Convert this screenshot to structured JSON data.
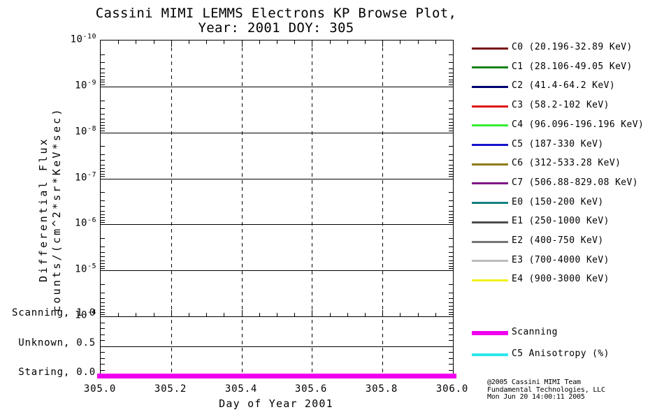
{
  "title": {
    "line1": "Cassini MIMI LEMMS Electrons KP Browse Plot,",
    "line2": "Year: 2001 DOY: 305"
  },
  "axes": {
    "x": {
      "label": "Day of Year 2001",
      "min": 305.0,
      "max": 306.0,
      "major_ticks": [
        305.0,
        305.2,
        305.4,
        305.6,
        305.8,
        306.0
      ],
      "tick_labels": [
        "305.0",
        "305.2",
        "305.4",
        "305.6",
        "305.8",
        "306.0"
      ],
      "minor_step": 0.05
    },
    "y_flux": {
      "label_line1": "Differential Flux",
      "label_line2": "counts/(cm^2*sr*KeV*sec)",
      "scale": "log",
      "top_exponent": -10,
      "bottom_exponent": -4,
      "tick_base": "10",
      "tick_exponents": [
        -10,
        -9,
        -8,
        -7,
        -6,
        -5,
        -4
      ]
    },
    "y_mode": {
      "tick_labels": [
        {
          "label": "Scanning, 1.0",
          "value": 1.0
        },
        {
          "label": "Unknown, 0.5",
          "value": 0.5
        },
        {
          "label": "Staring, 0.0",
          "value": 0.0
        }
      ],
      "minor_step": 0.1
    }
  },
  "legend": {
    "channels": [
      {
        "label": "C0 (20.196-32.89 KeV)",
        "color": "#7A1010"
      },
      {
        "label": "C1 (28.106-49.05 KeV)",
        "color": "#168016"
      },
      {
        "label": "C2 (41.4-64.2 KeV)",
        "color": "#000070"
      },
      {
        "label": "C3 (58.2-102 KeV)",
        "color": "#DD1414"
      },
      {
        "label": "C4 (96.096-196.196 KeV)",
        "color": "#33EE33"
      },
      {
        "label": "C5 (187-330 KeV)",
        "color": "#1414CC"
      },
      {
        "label": "C6 (312-533.28 KeV)",
        "color": "#8D7B12"
      },
      {
        "label": "C7 (506.88-829.08 KeV)",
        "color": "#7D1585"
      },
      {
        "label": "E0 (150-200 KeV)",
        "color": "#157F7F"
      },
      {
        "label": "E1 (250-1000 KeV)",
        "color": "#4D4D4D"
      },
      {
        "label": "E2 (400-750 KeV)",
        "color": "#757575"
      },
      {
        "label": "E3 (700-4000 KeV)",
        "color": "#BBBBBB"
      },
      {
        "label": "E4 (900-3000 KeV)",
        "color": "#F2F21A"
      }
    ],
    "modes": [
      {
        "label": "Scanning",
        "color": "#F000F0",
        "thickness": 6
      },
      {
        "label": "C5 Anisotropy (%)",
        "color": "#2EE8EE",
        "thickness": 4
      }
    ]
  },
  "footer": {
    "line1": "@2005 Cassini MIMI Team",
    "line2": "Fundamental Technologies, LLC",
    "line3": "Mon Jun 20 14:00:11 2005"
  },
  "chart_data": {
    "type": "line",
    "title": "Cassini MIMI LEMMS Electrons KP Browse Plot, Year: 2001 DOY: 305",
    "xlabel": "Day of Year 2001",
    "x_range": [
      305.0,
      306.0
    ],
    "x_major_ticks": [
      305.0,
      305.2,
      305.4,
      305.6,
      305.8,
      306.0
    ],
    "flux_axis": {
      "label": "Differential Flux counts/(cm^2*sr*KeV*sec)",
      "scale": "log10",
      "top_value": 1e-10,
      "bottom_value": 0.0001,
      "orientation": "10^-10 at top of panel, 10^-4 at bottom",
      "horizontal_grid": "solid line at every decade",
      "vertical_grid": {
        "style": "dashed",
        "positions": [
          305.2,
          305.4,
          305.6,
          305.8
        ]
      }
    },
    "mode_axis": {
      "levels": [
        {
          "label": "Scanning",
          "value": 1.0
        },
        {
          "label": "Unknown",
          "value": 0.5
        },
        {
          "label": "Staring",
          "value": 0.0
        }
      ]
    },
    "series": [
      {
        "name": "C0 (20.196-32.89 KeV)",
        "color": "#7A1010",
        "points": []
      },
      {
        "name": "C1 (28.106-49.05 KeV)",
        "color": "#168016",
        "points": []
      },
      {
        "name": "C2 (41.4-64.2 KeV)",
        "color": "#000070",
        "points": []
      },
      {
        "name": "C3 (58.2-102 KeV)",
        "color": "#DD1414",
        "points": []
      },
      {
        "name": "C4 (96.096-196.196 KeV)",
        "color": "#33EE33",
        "points": []
      },
      {
        "name": "C5 (187-330 KeV)",
        "color": "#1414CC",
        "points": []
      },
      {
        "name": "C6 (312-533.28 KeV)",
        "color": "#8D7B12",
        "points": []
      },
      {
        "name": "C7 (506.88-829.08 KeV)",
        "color": "#7D1585",
        "points": []
      },
      {
        "name": "E0 (150-200 KeV)",
        "color": "#157F7F",
        "points": []
      },
      {
        "name": "E1 (250-1000 KeV)",
        "color": "#4D4D4D",
        "points": []
      },
      {
        "name": "E2 (400-750 KeV)",
        "color": "#757575",
        "points": []
      },
      {
        "name": "E3 (700-4000 KeV)",
        "color": "#BBBBBB",
        "points": []
      },
      {
        "name": "E4 (900-3000 KeV)",
        "color": "#F2F21A",
        "points": []
      }
    ],
    "series_note": "No flux data points are drawn in the plot area for this day; panel is empty grid.",
    "mode_series": {
      "name": "Scanning",
      "color": "#F000F0",
      "x": [
        305.0,
        306.0
      ],
      "y": [
        0.0,
        0.0
      ],
      "note": "Thick magenta line along mode level 0.0 (Staring) across the full day."
    },
    "anisotropy_series": {
      "name": "C5 Anisotropy (%)",
      "color": "#2EE8EE",
      "points": []
    }
  }
}
